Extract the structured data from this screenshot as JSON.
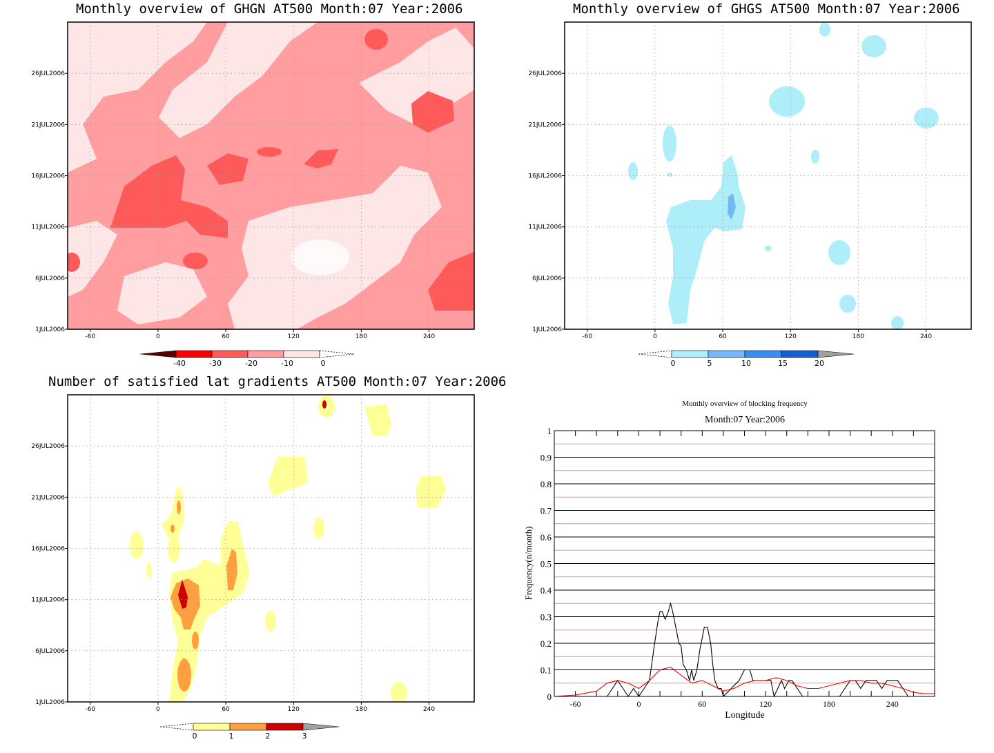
{
  "panels": {
    "ghgn": {
      "title": "Monthly overview of GHGN AT500 Month:07 Year:2006",
      "y_ticks": [
        "26JUL2006",
        "21JUL2006",
        "16JUL2006",
        "11JUL2006",
        "6JUL2006",
        "1JUL2006"
      ],
      "x_ticks": [
        "-60",
        "0",
        "60",
        "120",
        "180",
        "240"
      ],
      "colorbar": {
        "labels": [
          "-40",
          "-30",
          "-20",
          "-10",
          "0"
        ],
        "colors": [
          "#5a0000",
          "#ff0000",
          "#ff5a5a",
          "#ff9da0",
          "#ffe6e6"
        ]
      }
    },
    "ghgs": {
      "title": "Monthly overview of GHGS AT500 Month:07 Year:2006",
      "y_ticks": [
        "26JUL2006",
        "21JUL2006",
        "16JUL2006",
        "11JUL2006",
        "6JUL2006",
        "1JUL2006"
      ],
      "x_ticks": [
        "-60",
        "0",
        "60",
        "120",
        "180",
        "240"
      ],
      "colorbar": {
        "labels": [
          "0",
          "5",
          "10",
          "15",
          "20"
        ],
        "colors": [
          "#aeeef8",
          "#74b8f8",
          "#3a8cf0",
          "#1660d0",
          "#a0a0a0"
        ]
      }
    },
    "gradients": {
      "title": "Number of satisfied lat gradients AT500 Month:07 Year:2006",
      "y_ticks": [
        "26JUL2006",
        "21JUL2006",
        "16JUL2006",
        "11JUL2006",
        "6JUL2006",
        "1JUL2006"
      ],
      "x_ticks": [
        "-60",
        "0",
        "60",
        "120",
        "180",
        "240"
      ],
      "colorbar": {
        "labels": [
          "0",
          "1",
          "2",
          "3"
        ],
        "colors": [
          "#ffff98",
          "#ffa040",
          "#cc0000",
          "#a0a0a0"
        ]
      }
    },
    "blocking": {
      "title": "Monthly overview of blocking frequency",
      "subtitle": "Month:07 Year:2006",
      "xlabel": "Longitude",
      "ylabel": "Frequency(n/month)"
    }
  },
  "chart_data": [
    {
      "type": "heatmap",
      "title": "Monthly overview of GHGN AT500 Month:07 Year:2006",
      "x_ticks": [
        -60,
        0,
        60,
        120,
        180,
        240
      ],
      "y_ticks": [
        "1JUL2006",
        "6JUL2006",
        "11JUL2006",
        "16JUL2006",
        "21JUL2006",
        "26JUL2006"
      ],
      "levels": [
        -40,
        -30,
        -20,
        -10,
        0
      ]
    },
    {
      "type": "heatmap",
      "title": "Monthly overview of GHGS AT500 Month:07 Year:2006",
      "x_ticks": [
        -60,
        0,
        60,
        120,
        180,
        240
      ],
      "y_ticks": [
        "1JUL2006",
        "6JUL2006",
        "11JUL2006",
        "16JUL2006",
        "21JUL2006",
        "26JUL2006"
      ],
      "levels": [
        0,
        5,
        10,
        15,
        20
      ]
    },
    {
      "type": "heatmap",
      "title": "Number of satisfied lat gradients AT500 Month:07 Year:2006",
      "x_ticks": [
        -60,
        0,
        60,
        120,
        180,
        240
      ],
      "y_ticks": [
        "1JUL2006",
        "6JUL2006",
        "11JUL2006",
        "16JUL2006",
        "21JUL2006",
        "26JUL2006"
      ],
      "levels": [
        0,
        1,
        2,
        3
      ]
    },
    {
      "type": "line",
      "title": "Monthly overview of blocking frequency",
      "subtitle": "Month:07 Year:2006",
      "xlabel": "Longitude",
      "ylabel": "Frequency(n/month)",
      "xlim": [
        -80,
        280
      ],
      "ylim": [
        0,
        1
      ],
      "x_ticks": [
        -60,
        0,
        60,
        120,
        180,
        240
      ],
      "y_ticks": [
        0,
        0.1,
        0.2,
        0.3,
        0.4,
        0.5,
        0.6,
        0.7,
        0.8,
        0.9,
        1
      ],
      "grid": true,
      "series": [
        {
          "color": "#000000",
          "x": [
            -80,
            -30,
            -25,
            -20,
            -15,
            -10,
            -5,
            0,
            5,
            10,
            15,
            18,
            20,
            22,
            25,
            28,
            30,
            32,
            35,
            38,
            40,
            42,
            45,
            48,
            50,
            52,
            55,
            58,
            60,
            62,
            65,
            68,
            70,
            72,
            75,
            78,
            80,
            95,
            100,
            105,
            108,
            112,
            118,
            125,
            128,
            135,
            138,
            142,
            145,
            150,
            155,
            190,
            195,
            200,
            205,
            210,
            215,
            220,
            225,
            230,
            235,
            245,
            250,
            255,
            280
          ],
          "y": [
            0,
            0,
            0.03,
            0.06,
            0.03,
            0,
            0.03,
            0,
            0.03,
            0.06,
            0.2,
            0.28,
            0.32,
            0.32,
            0.29,
            0.32,
            0.35,
            0.32,
            0.26,
            0.2,
            0.19,
            0.12,
            0.1,
            0.06,
            0.1,
            0.06,
            0.1,
            0.18,
            0.22,
            0.26,
            0.26,
            0.2,
            0.12,
            0.06,
            0.03,
            0.03,
            0,
            0.06,
            0.1,
            0.1,
            0.06,
            0.06,
            0.06,
            0.06,
            0,
            0.06,
            0.03,
            0.06,
            0.06,
            0.03,
            0,
            0,
            0.03,
            0.06,
            0.06,
            0.03,
            0.06,
            0.06,
            0.06,
            0.03,
            0.06,
            0.06,
            0.03,
            0,
            0
          ]
        },
        {
          "color": "#ff0000",
          "x": [
            -80,
            -60,
            -40,
            -30,
            -20,
            -10,
            0,
            10,
            20,
            30,
            40,
            50,
            60,
            70,
            80,
            90,
            100,
            110,
            120,
            130,
            140,
            150,
            160,
            170,
            180,
            190,
            200,
            210,
            220,
            230,
            240,
            250,
            260,
            270,
            280
          ],
          "y": [
            0,
            0.005,
            0.02,
            0.05,
            0.06,
            0.05,
            0.03,
            0.06,
            0.1,
            0.11,
            0.08,
            0.05,
            0.06,
            0.04,
            0.02,
            0.03,
            0.05,
            0.06,
            0.06,
            0.07,
            0.06,
            0.04,
            0.03,
            0.03,
            0.04,
            0.05,
            0.06,
            0.06,
            0.05,
            0.05,
            0.04,
            0.03,
            0.015,
            0.01,
            0.01
          ]
        }
      ]
    }
  ]
}
